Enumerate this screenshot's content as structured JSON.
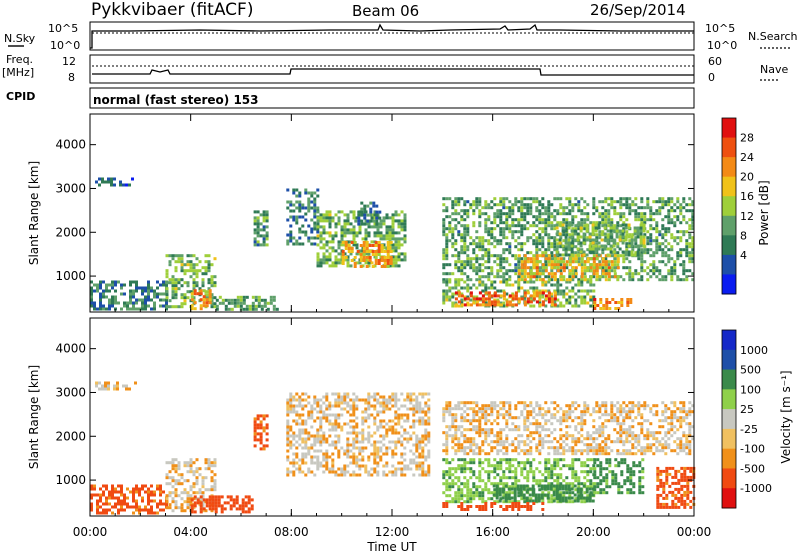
{
  "header": {
    "station": "Pykkvibaer (fitACF)",
    "beam": "Beam 06",
    "date": "26/Sep/2014"
  },
  "top_panels": {
    "nsky_label": "N.Sky",
    "nsearch_label": "N.Search",
    "nsky_ticks": [
      "10^5",
      "10^0"
    ],
    "nsearch_ticks": [
      "10^5",
      "10^0"
    ],
    "freq_label_1": "Freq.",
    "freq_label_2": "[MHz]",
    "freq_ticks": [
      "12",
      "8"
    ],
    "nave_label": "Nave",
    "nave_ticks": [
      "60",
      "0"
    ],
    "cpid_label": "CPID",
    "cpid_text": "normal (fast stereo) 153"
  },
  "colors": {
    "power": [
      "#0a1cf0",
      "#1d4fa8",
      "#2f7a55",
      "#5fa06a",
      "#9fcf3a",
      "#f0c21a",
      "#f38a16",
      "#ee5010",
      "#e01010"
    ],
    "velocity": [
      "#e01010",
      "#f04a12",
      "#f0901a",
      "#f0c060",
      "#c8c8c0",
      "#c8c8c0",
      "#8fd04a",
      "#3a8a4a",
      "#1e4fa8",
      "#1428c8"
    ]
  },
  "chart_data": [
    {
      "type": "heatmap",
      "panel": "power",
      "xlabel": "Time UT",
      "ylabel": "Slant Range [km]",
      "x_ticks": [
        "00:00",
        "04:00",
        "08:00",
        "12:00",
        "16:00",
        "20:00",
        "00:00"
      ],
      "x_range_hours": [
        0,
        24
      ],
      "y_ticks": [
        1000,
        2000,
        3000,
        4000
      ],
      "ylim": [
        180,
        4700
      ],
      "colorbar_label": "Power [dB]",
      "colorbar_ticks": [
        "28",
        "24",
        "20",
        "16",
        "12",
        "8",
        "4"
      ],
      "colorbar_range": [
        0,
        32
      ],
      "regions": [
        {
          "t0": 0.2,
          "t1": 1.8,
          "r0": 3050,
          "r1": 3250,
          "v": 6
        },
        {
          "t0": 0.0,
          "t1": 3.0,
          "r0": 250,
          "r1": 900,
          "v": 9
        },
        {
          "t0": 3.0,
          "t1": 5.0,
          "r0": 300,
          "r1": 1500,
          "v": 13
        },
        {
          "t0": 4.0,
          "t1": 4.8,
          "r0": 250,
          "r1": 700,
          "v": 22
        },
        {
          "t0": 5.0,
          "t1": 7.5,
          "r0": 250,
          "r1": 550,
          "v": 12
        },
        {
          "t0": 6.5,
          "t1": 7.0,
          "r0": 1700,
          "r1": 2500,
          "v": 11
        },
        {
          "t0": 7.8,
          "t1": 9.0,
          "r0": 1700,
          "r1": 3000,
          "v": 9
        },
        {
          "t0": 9.0,
          "t1": 12.5,
          "r0": 1200,
          "r1": 2500,
          "v": 13
        },
        {
          "t0": 10.0,
          "t1": 12.0,
          "r0": 1200,
          "r1": 1800,
          "v": 22
        },
        {
          "t0": 10.5,
          "t1": 11.5,
          "r0": 2200,
          "r1": 2700,
          "v": 9
        },
        {
          "t0": 14.0,
          "t1": 24.0,
          "r0": 900,
          "r1": 2800,
          "v": 12
        },
        {
          "t0": 14.0,
          "t1": 20.0,
          "r0": 300,
          "r1": 900,
          "v": 14
        },
        {
          "t0": 14.5,
          "t1": 18.5,
          "r0": 320,
          "r1": 650,
          "v": 25
        },
        {
          "t0": 17.0,
          "t1": 21.0,
          "r0": 950,
          "r1": 1500,
          "v": 20
        },
        {
          "t0": 18.5,
          "t1": 22.0,
          "r0": 1500,
          "r1": 2200,
          "v": 14
        },
        {
          "t0": 20.0,
          "t1": 21.5,
          "r0": 280,
          "r1": 500,
          "v": 24
        }
      ]
    },
    {
      "type": "heatmap",
      "panel": "velocity",
      "xlabel": "Time UT",
      "ylabel": "Slant Range [km]",
      "x_ticks": [
        "00:00",
        "04:00",
        "08:00",
        "12:00",
        "16:00",
        "20:00",
        "00:00"
      ],
      "x_range_hours": [
        0,
        24
      ],
      "y_ticks": [
        1000,
        2000,
        3000,
        4000
      ],
      "ylim": [
        180,
        4700
      ],
      "colorbar_label": "Velocity [m s⁻¹]",
      "colorbar_ticks": [
        "1000",
        "500",
        "100",
        "25",
        "-25",
        "-100",
        "-500",
        "-1000"
      ],
      "regions": [
        {
          "t0": 0.2,
          "t1": 1.8,
          "r0": 3050,
          "r1": 3250,
          "v": 0
        },
        {
          "t0": 0.0,
          "t1": 3.0,
          "r0": 250,
          "r1": 900,
          "v": -150
        },
        {
          "t0": 3.0,
          "t1": 5.0,
          "r0": 300,
          "r1": 1500,
          "v": 0
        },
        {
          "t0": 4.0,
          "t1": 6.5,
          "r0": 250,
          "r1": 650,
          "v": -300
        },
        {
          "t0": 6.5,
          "t1": 7.0,
          "r0": 1700,
          "r1": 2500,
          "v": -150
        },
        {
          "t0": 7.8,
          "t1": 13.5,
          "r0": 1100,
          "r1": 3000,
          "v": 0
        },
        {
          "t0": 14.0,
          "t1": 24.0,
          "r0": 1600,
          "r1": 2800,
          "v": 0
        },
        {
          "t0": 14.0,
          "t1": 20.0,
          "r0": 500,
          "r1": 1500,
          "v": 200
        },
        {
          "t0": 16.0,
          "t1": 20.0,
          "r0": 500,
          "r1": 900,
          "v": 400
        },
        {
          "t0": 14.0,
          "t1": 18.0,
          "r0": 300,
          "r1": 500,
          "v": -200
        },
        {
          "t0": 20.0,
          "t1": 22.0,
          "r0": 700,
          "r1": 1500,
          "v": 300
        },
        {
          "t0": 22.5,
          "t1": 24.0,
          "r0": 400,
          "r1": 1300,
          "v": -150
        }
      ]
    }
  ]
}
